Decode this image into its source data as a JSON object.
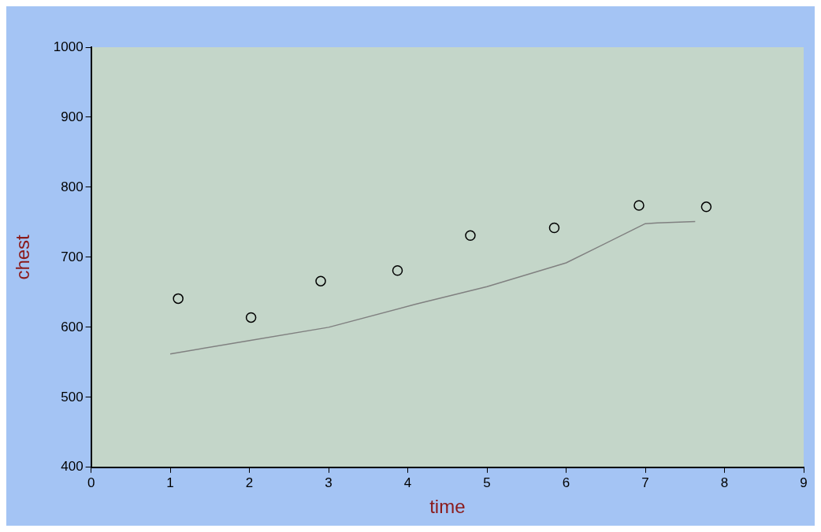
{
  "chart_data": {
    "type": "scatter",
    "xlabel": "time",
    "ylabel": "chest",
    "xlim": [
      0,
      9
    ],
    "xticks": [
      0,
      1,
      2,
      3,
      4,
      5,
      6,
      7,
      8,
      9
    ],
    "ylim": [
      400,
      1000
    ],
    "yticks": [
      400,
      500,
      600,
      700,
      800,
      900,
      1000
    ],
    "grid": false,
    "legend": false,
    "marker": "circle",
    "series": [
      {
        "color": "#000000",
        "x": [
          1.1,
          2.02,
          2.9,
          3.87,
          4.79,
          5.85,
          6.92,
          7.77
        ],
        "values": [
          641,
          614,
          666,
          681,
          731,
          742,
          774,
          772
        ]
      },
      {
        "type": "line",
        "color": "#808080",
        "marker": "none",
        "line_style": "solid",
        "x": [
          1,
          2,
          3,
          4.1,
          5,
          6,
          7,
          7.15,
          7.63
        ],
        "values": [
          562,
          581,
          600,
          633,
          658,
          692,
          748,
          749,
          751
        ]
      }
    ]
  }
}
